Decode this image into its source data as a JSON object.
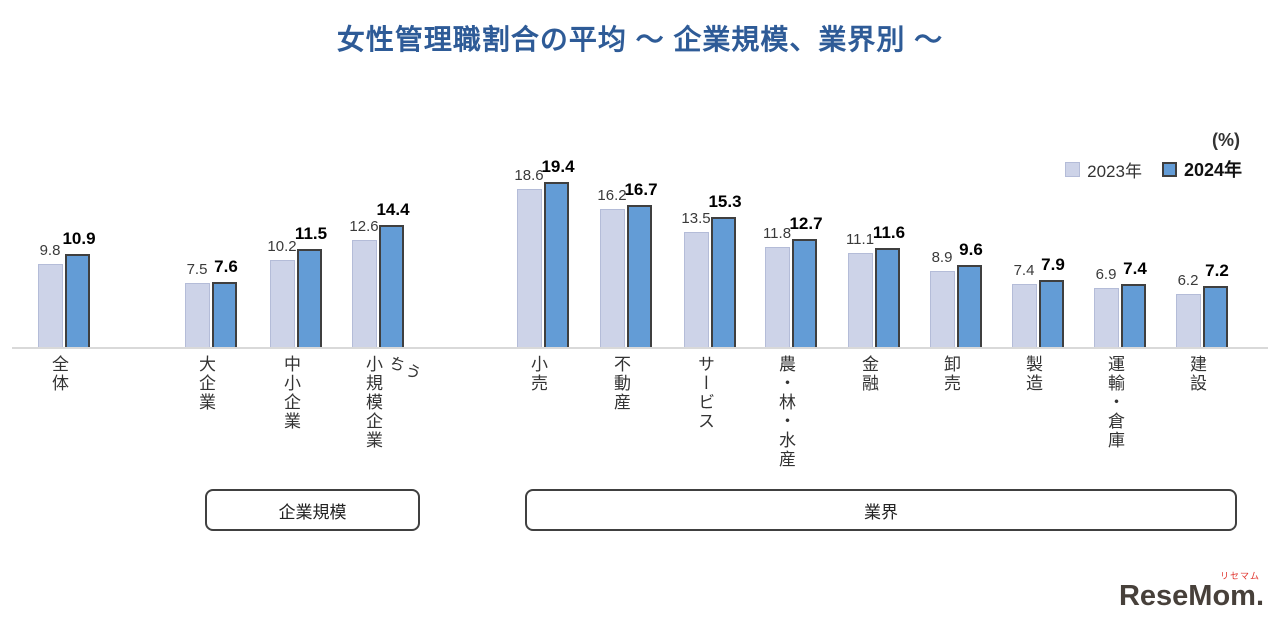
{
  "chart_data": {
    "type": "bar",
    "title": "女性管理職割合の平均 ～ 企業規模、業界別 ～",
    "ylabel": "(%)",
    "ylim": [
      0,
      20
    ],
    "grid": false,
    "legend_position": "top-right",
    "categories": [
      "全体",
      "大企業",
      "中小企業",
      "うち小規模企業",
      "小売",
      "不動産",
      "サービス",
      "農・林・水産",
      "金融",
      "卸売",
      "製造",
      "運輸・倉庫",
      "建設"
    ],
    "category_display": [
      {
        "main": "全体"
      },
      {
        "main": "大企業"
      },
      {
        "main": "中小企業"
      },
      {
        "main": "小規模企業",
        "side": "うち"
      },
      {
        "main": "小売"
      },
      {
        "main": "不動産"
      },
      {
        "main": "サービス"
      },
      {
        "main": "農・林・水産"
      },
      {
        "main": "金融"
      },
      {
        "main": "卸売"
      },
      {
        "main": "製造"
      },
      {
        "main": "運輸・倉庫"
      },
      {
        "main": "建設"
      }
    ],
    "series": [
      {
        "name": "2023年",
        "values": [
          9.8,
          7.5,
          10.2,
          12.6,
          18.6,
          16.2,
          13.5,
          11.8,
          11.1,
          8.9,
          7.4,
          6.9,
          6.2
        ]
      },
      {
        "name": "2024年",
        "values": [
          10.9,
          7.6,
          11.5,
          14.4,
          19.4,
          16.7,
          15.3,
          12.7,
          11.6,
          9.6,
          7.9,
          7.4,
          7.2
        ]
      }
    ],
    "groups": [
      {
        "label": "企業規模",
        "category_span": [
          "大企業",
          "中小企業",
          "うち小規模企業"
        ]
      },
      {
        "label": "業界",
        "category_span": [
          "小売",
          "不動産",
          "サービス",
          "農・林・水産",
          "金融",
          "卸売",
          "製造",
          "運輸・倉庫",
          "建設"
        ]
      }
    ]
  },
  "colors": {
    "title": "#2e5b97",
    "bar_2023": "#cdd3e8",
    "bar_2023_border": "#b4bcd8",
    "bar_2024": "#639cd6",
    "bar_2024_border": "#3f3f3f",
    "baseline": "#d9d9d9"
  },
  "logo": {
    "text": "ReseMom.",
    "sub": "リセマム"
  }
}
